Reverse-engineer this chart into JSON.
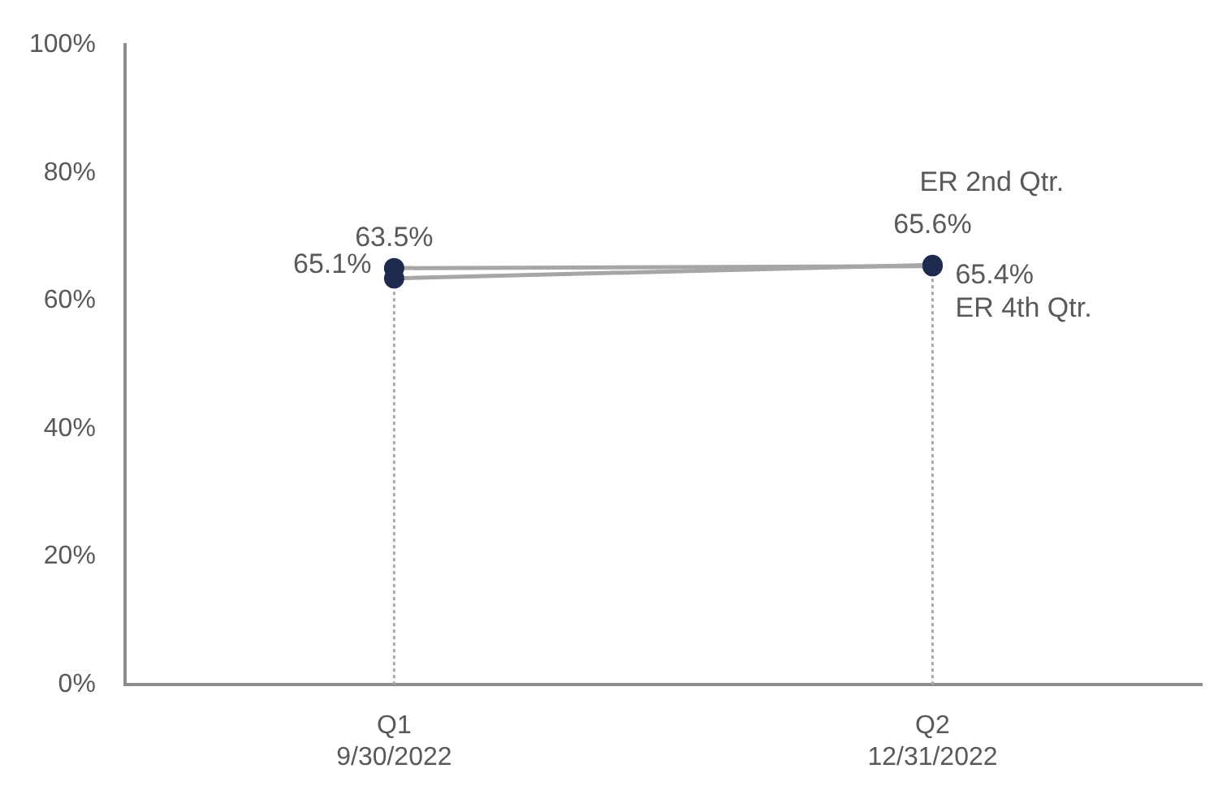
{
  "chart_data": {
    "type": "line",
    "categories": [
      "Q1\n9/30/2022",
      "Q2\n12/31/2022"
    ],
    "series": [
      {
        "name": "ER 2nd Qtr.",
        "color": "#a6a6a6",
        "values": [
          63.5,
          65.6
        ],
        "value_labels": [
          "63.5%",
          "65.6%"
        ]
      },
      {
        "name": "ER 4th Qtr.",
        "color": "#a6a6a6",
        "values": [
          65.1,
          65.4
        ],
        "value_labels": [
          "65.1%",
          "65.4%"
        ]
      }
    ],
    "ylim": [
      0,
      100
    ],
    "yticks": [
      {
        "value": 0,
        "label": "0%"
      },
      {
        "value": 20,
        "label": "20%"
      },
      {
        "value": 40,
        "label": "40%"
      },
      {
        "value": 60,
        "label": "60%"
      },
      {
        "value": 80,
        "label": "80%"
      },
      {
        "value": 100,
        "label": "100%"
      }
    ],
    "marker": "circle",
    "line_style": "solid",
    "legend": false
  }
}
